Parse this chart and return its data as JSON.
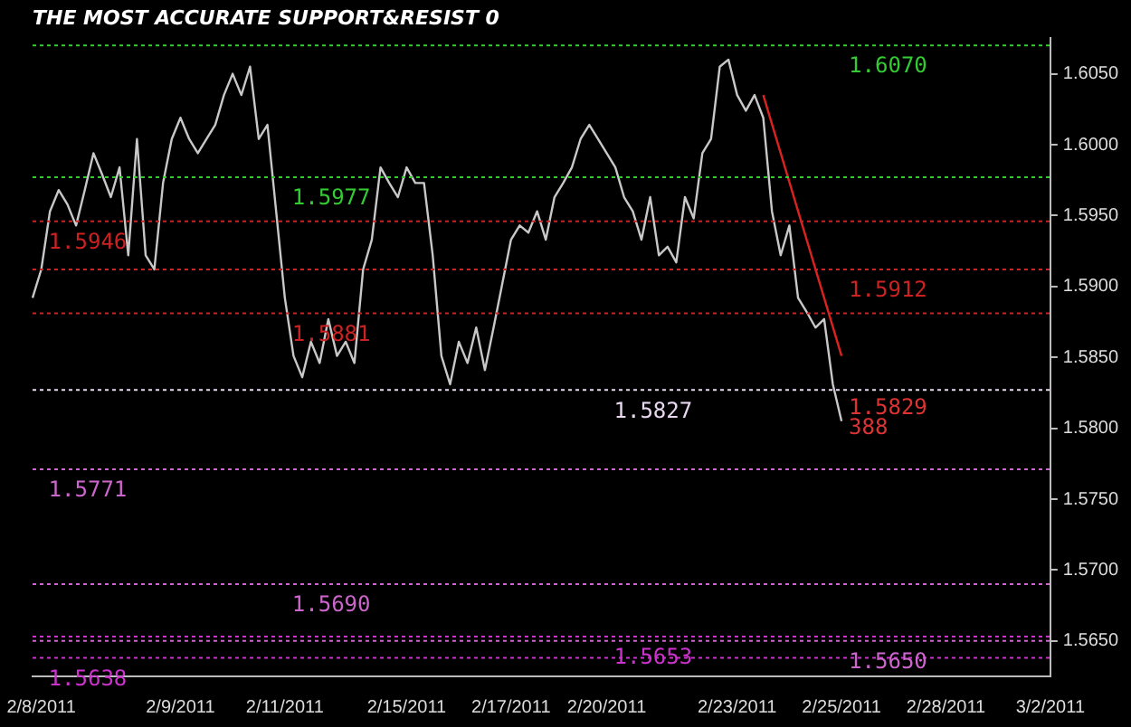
{
  "chart_data": {
    "type": "line",
    "title": "THE MOST ACCURATE SUPPORT&RESIST 0",
    "categories": [
      null,
      "2/8/2011",
      null,
      null,
      null,
      null,
      null,
      null,
      null,
      null,
      null,
      null,
      null,
      null,
      null,
      null,
      null,
      "2/9/2011",
      null,
      null,
      null,
      null,
      null,
      null,
      null,
      null,
      null,
      null,
      null,
      "2/11/2011",
      null,
      null,
      null,
      null,
      null,
      null,
      null,
      null,
      null,
      null,
      null,
      null,
      null,
      "2/15/2011",
      null,
      null,
      null,
      null,
      null,
      null,
      null,
      null,
      null,
      null,
      null,
      "2/17/2011",
      null,
      null,
      null,
      null,
      null,
      null,
      null,
      null,
      null,
      null,
      "2/20/2011",
      null,
      null,
      null,
      null,
      null,
      null,
      null,
      null,
      null,
      null,
      null,
      null,
      null,
      null,
      "2/23/2011",
      null,
      null,
      null,
      null,
      null,
      null,
      null,
      null,
      null,
      null,
      null,
      "2/25/2011",
      null,
      null,
      null,
      null,
      null,
      null,
      null,
      null,
      null,
      null,
      null,
      "2/28/2011",
      null,
      null,
      null,
      null,
      null,
      null,
      null,
      null,
      null,
      null,
      null,
      "3/2/2011"
    ],
    "series": [
      {
        "color": "#c8c8c8",
        "values": [
          1.5892,
          1.5912,
          1.5953,
          1.5968,
          1.5958,
          1.5943,
          1.5968,
          1.5994,
          1.5979,
          1.5963,
          1.5984,
          1.5922,
          1.6004,
          1.5922,
          1.5912,
          1.5973,
          1.6004,
          1.6019,
          1.6004,
          1.5994,
          1.6004,
          1.6014,
          1.6035,
          1.605,
          1.6035,
          1.6055,
          1.6004,
          1.6014,
          1.5953,
          1.5892,
          1.5851,
          1.5836,
          1.5861,
          1.5846,
          1.5877,
          1.5851,
          1.5861,
          1.5846,
          1.5912,
          1.5933,
          1.5984,
          1.5973,
          1.5963,
          1.5984,
          1.5973,
          1.5973,
          1.5922,
          1.5851,
          1.5831,
          1.5861,
          1.5846,
          1.5871,
          1.5841,
          1.5871,
          1.5902,
          1.5933,
          1.5943,
          1.5938,
          1.5953,
          1.5933,
          1.5963,
          1.5973,
          1.5984,
          1.6004,
          1.6014,
          1.6004,
          1.5994,
          1.5984,
          1.5963,
          1.5953,
          1.5933,
          1.5963,
          1.5922,
          1.5928,
          1.5917,
          1.5963,
          1.5948,
          1.5994,
          1.6004,
          1.6055,
          1.606,
          1.6035,
          1.6024,
          1.6035,
          1.6019,
          1.5953,
          1.5922,
          1.5943,
          1.5892,
          1.5882,
          1.5871,
          1.5877,
          1.5831,
          1.5805,
          null,
          null,
          null,
          null,
          null,
          null,
          null,
          null,
          null,
          null,
          null,
          null,
          null,
          null,
          null,
          null,
          null,
          null,
          null,
          null,
          null,
          null,
          null,
          null
        ]
      },
      {
        "color": "#dd2222",
        "values": [
          null,
          null,
          null,
          null,
          null,
          null,
          null,
          null,
          null,
          null,
          null,
          null,
          null,
          null,
          null,
          null,
          null,
          null,
          null,
          null,
          null,
          null,
          null,
          null,
          null,
          null,
          null,
          null,
          null,
          null,
          null,
          null,
          null,
          null,
          null,
          null,
          null,
          null,
          null,
          null,
          null,
          null,
          null,
          null,
          null,
          null,
          null,
          null,
          null,
          null,
          null,
          null,
          null,
          null,
          null,
          null,
          null,
          null,
          null,
          null,
          null,
          null,
          null,
          null,
          null,
          null,
          null,
          null,
          null,
          null,
          null,
          null,
          null,
          null,
          null,
          null,
          null,
          null,
          null,
          null,
          null,
          null,
          null,
          null,
          1.6035,
          null,
          null,
          null,
          null,
          null,
          null,
          null,
          null,
          1.5851,
          null,
          null,
          null,
          null,
          null,
          null,
          null,
          null,
          null,
          null,
          null,
          null,
          null,
          null,
          null,
          null,
          null,
          null,
          null,
          null,
          null,
          null,
          null,
          null
        ]
      }
    ],
    "ylim": [
      1.5625,
      1.6075
    ],
    "yticks": [
      {
        "value": 1.565,
        "label": "1.5650"
      },
      {
        "value": 1.57,
        "label": "1.5700"
      },
      {
        "value": 1.575,
        "label": "1.5750"
      },
      {
        "value": 1.58,
        "label": "1.5800"
      },
      {
        "value": 1.585,
        "label": "1.5850"
      },
      {
        "value": 1.59,
        "label": "1.5900"
      },
      {
        "value": 1.595,
        "label": "1.5950"
      },
      {
        "value": 1.6,
        "label": "1.6000"
      },
      {
        "value": 1.605,
        "label": "1.6050"
      }
    ],
    "ref_lines": [
      {
        "axis": "y",
        "value": 1.607,
        "color": "#33cc33",
        "line_style": "dotted"
      },
      {
        "axis": "y",
        "value": 1.5977,
        "color": "#33cc33",
        "line_style": "dotted"
      },
      {
        "axis": "y",
        "value": 1.5946,
        "color": "#cc2222",
        "line_style": "dotted"
      },
      {
        "axis": "y",
        "value": 1.5912,
        "color": "#cc2222",
        "line_style": "dotted"
      },
      {
        "axis": "y",
        "value": 1.5881,
        "color": "#cc2222",
        "line_style": "dotted"
      },
      {
        "axis": "y",
        "value": 1.5827,
        "color": "#e8d8f0",
        "line_style": "dotted"
      },
      {
        "axis": "y",
        "value": 1.5771,
        "color": "#cc66cc",
        "line_style": "dotted"
      },
      {
        "axis": "y",
        "value": 1.569,
        "color": "#cc66cc",
        "line_style": "dotted"
      },
      {
        "axis": "y",
        "value": 1.5653,
        "color": "#cc33cc",
        "line_style": "dotted"
      },
      {
        "axis": "y",
        "value": 1.565,
        "color": "#cc66cc",
        "line_style": "dotted"
      },
      {
        "axis": "y",
        "value": 1.5638,
        "color": "#cc33cc",
        "line_style": "dotted"
      }
    ],
    "annotations": [
      {
        "text": "1.6070",
        "x": "2/25/2011",
        "y": 1.607
      },
      {
        "text": "1.5977",
        "x": "2/11/2011",
        "y": 1.5977
      },
      {
        "text": "1.5946",
        "x": "2/8/2011",
        "y": 1.5946
      },
      {
        "text": "1.5912",
        "x": "2/25/2011",
        "y": 1.5912
      },
      {
        "text": "1.5881",
        "x": "2/11/2011",
        "y": 1.5881
      },
      {
        "text": "1.5827",
        "x": "2/20/2011",
        "y": 1.5827
      },
      {
        "text": "1.5771",
        "x": "2/8/2011",
        "y": 1.5771
      },
      {
        "text": "1.5690",
        "x": "2/11/2011",
        "y": 1.569
      },
      {
        "text": "1.5653",
        "x": "2/20/2011",
        "y": 1.5653
      },
      {
        "text": "1.5650",
        "x": "2/25/2011",
        "y": 1.565
      },
      {
        "text": "1.5638",
        "x": "2/8/2011",
        "y": 1.5638
      },
      {
        "text": "1.5829",
        "x": "2/25/2011",
        "y": 1.5829
      },
      {
        "text": "388",
        "x": "2/25/2011",
        "y": 1.5815
      }
    ],
    "grid": false,
    "legend": false,
    "marker": "none",
    "line_style": "solid"
  }
}
